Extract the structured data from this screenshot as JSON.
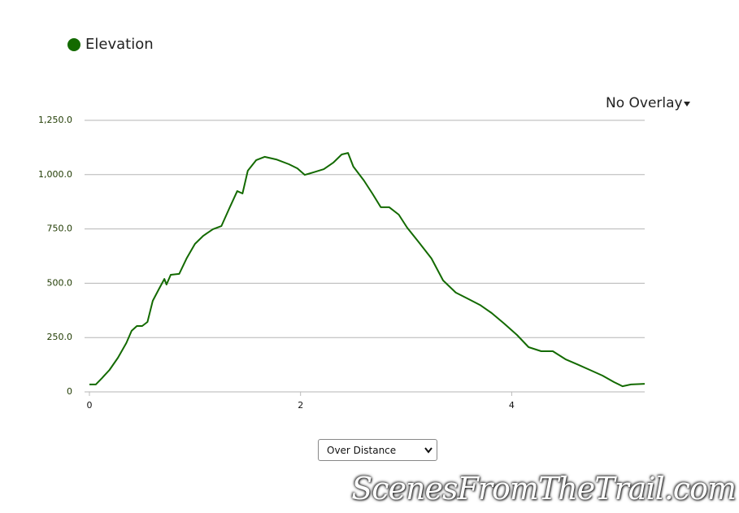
{
  "chart_data": {
    "type": "line",
    "x": [
      0,
      0.06,
      0.12,
      0.19,
      0.27,
      0.35,
      0.4,
      0.45,
      0.5,
      0.55,
      0.6,
      0.66,
      0.71,
      0.73,
      0.77,
      0.85,
      0.92,
      1.0,
      1.08,
      1.17,
      1.25,
      1.33,
      1.4,
      1.45,
      1.5,
      1.58,
      1.66,
      1.77,
      1.89,
      1.97,
      2.04,
      2.12,
      2.22,
      2.31,
      2.39,
      2.45,
      2.5,
      2.6,
      2.68,
      2.76,
      2.84,
      2.93,
      3.01,
      3.12,
      3.24,
      3.35,
      3.47,
      3.58,
      3.7,
      3.81,
      3.93,
      4.05,
      4.16,
      4.28,
      4.39,
      4.51,
      4.62,
      4.74,
      4.86,
      4.97,
      5.05,
      5.13,
      5.26
    ],
    "series": [
      {
        "name": "Elevation",
        "color": "#136a00",
        "values": [
          34,
          34,
          64,
          101,
          157,
          225,
          281,
          303,
          303,
          322,
          419,
          475,
          520,
          494,
          539,
          543,
          614,
          681,
          719,
          749,
          763,
          850,
          924,
          913,
          1018,
          1067,
          1082,
          1070,
          1048,
          1029,
          999,
          1010,
          1025,
          1055,
          1093,
          1100,
          1037,
          973,
          913,
          850,
          850,
          816,
          756,
          689,
          614,
          513,
          457,
          430,
          400,
          363,
          314,
          262,
          206,
          187,
          187,
          150,
          127,
          101,
          75,
          45,
          26,
          34,
          37
        ]
      }
    ],
    "xlim": [
      0,
      5.26
    ],
    "xticks": [
      0,
      2,
      4
    ],
    "ylim": [
      0,
      1250
    ],
    "yticks": [
      0,
      {
        "value": 250,
        "label": "250.0"
      },
      {
        "value": 500,
        "label": "500.0"
      },
      {
        "value": 750,
        "label": "750.0"
      },
      {
        "value": 1000,
        "label": "1,000.0"
      },
      {
        "value": 1250,
        "label": "1,250.0"
      }
    ],
    "grid": true
  },
  "ui": {
    "overlay": "No Overlay",
    "mode_select": "Over Distance",
    "watermark": "ScenesFromTheTrail.com"
  }
}
